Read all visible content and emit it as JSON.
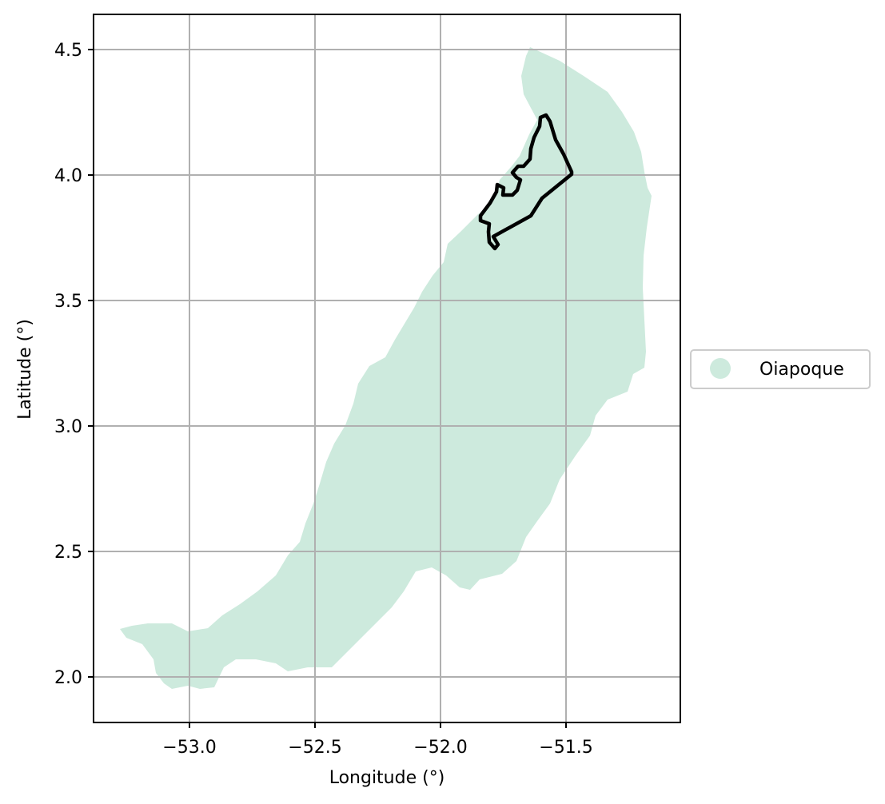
{
  "map": {
    "xlabel": "Longitude (°)",
    "ylabel": "Latitude (°)",
    "x_ticks": [
      "−53.0",
      "−52.5",
      "−52.0",
      "−51.5"
    ],
    "y_ticks": [
      "2.0",
      "2.5",
      "3.0",
      "3.5",
      "4.0",
      "4.5"
    ],
    "xlim": [
      -53.38,
      -51.04
    ],
    "ylim": [
      1.82,
      4.64
    ],
    "grid": true,
    "legend": {
      "placement": "center-right, outside axes",
      "entries": [
        {
          "label": "Oiapoque",
          "color": "#cdeadd"
        }
      ]
    },
    "region": {
      "name": "Oiapoque",
      "fill_color": "#cdeadd"
    },
    "highlight_outline": {
      "stroke_color": "#000000"
    }
  }
}
